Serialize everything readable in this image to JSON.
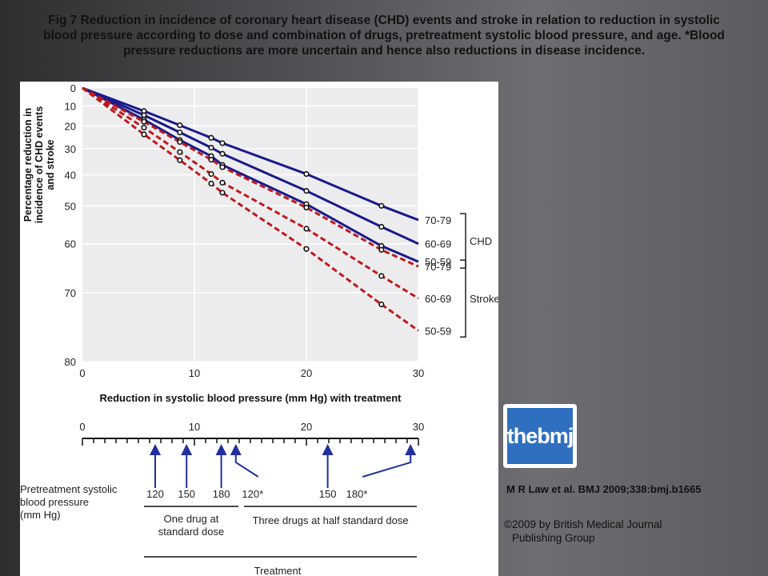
{
  "caption": "Fig 7  Reduction in incidence of coronary heart disease (CHD) events and stroke in relation to reduction in systolic blood pressure according to dose and combination of drugs, pretreatment systolic blood pressure, and age. *Blood pressure reductions are more uncertain and hence also reductions in disease incidence.",
  "chart_data": {
    "type": "line",
    "title": "",
    "xlabel": "Reduction in systolic blood pressure (mm Hg) with treatment",
    "ylabel_lines": [
      "Percentage reduction in",
      "incidence of CHD events",
      "and stroke"
    ],
    "xlim": [
      0,
      30
    ],
    "ylim": [
      0,
      80
    ],
    "y_inverted": true,
    "y_scale": "log(1-p)",
    "x_ticks": [
      0,
      10,
      20,
      30
    ],
    "y_ticks": [
      0,
      10,
      20,
      30,
      40,
      50,
      60,
      70,
      80
    ],
    "grid": true,
    "markers_x": [
      5.5,
      8.7,
      11.5,
      12.5,
      20,
      26.7
    ],
    "series": [
      {
        "name": "70-79",
        "group": "CHD",
        "color": "#1a1a8c",
        "dash": false,
        "end_value": 54,
        "values": [
          12.7,
          19.7,
          25.4,
          27.7,
          39.7,
          50.0
        ]
      },
      {
        "name": "60-69",
        "group": "CHD",
        "color": "#1a1a8c",
        "dash": false,
        "end_value": 60,
        "values": [
          14.8,
          23.0,
          29.6,
          32.1,
          45.4,
          55.8
        ]
      },
      {
        "name": "50-59",
        "group": "CHD",
        "color": "#1a1a8c",
        "dash": false,
        "end_value": 64,
        "values": [
          17.0,
          26.4,
          33.0,
          36.4,
          49.5,
          60.5
        ]
      },
      {
        "name": "70-79",
        "group": "Stroke",
        "color": "#c0191c",
        "dash": true,
        "end_value": 65,
        "values": [
          18.0,
          27.2,
          34.4,
          37.2,
          50.5,
          61.4
        ]
      },
      {
        "name": "60-69",
        "group": "Stroke",
        "color": "#c0191c",
        "dash": true,
        "end_value": 71,
        "values": [
          20.8,
          31.4,
          39.7,
          42.7,
          56.3,
          66.9
        ]
      },
      {
        "name": "50-59",
        "group": "Stroke",
        "color": "#c0191c",
        "dash": true,
        "end_value": 76,
        "values": [
          23.9,
          34.6,
          43.0,
          46.0,
          61.2,
          72.0
        ]
      }
    ],
    "groups": [
      "CHD",
      "Stroke"
    ]
  },
  "treatment": {
    "axis_ticks": [
      0,
      10,
      20,
      30
    ],
    "axis_label_values": [
      0,
      10,
      20,
      30
    ],
    "row_label_lines": [
      "Pretreatment systolic",
      "blood pressure",
      "(mm Hg)"
    ],
    "one_drug": {
      "label_lines": [
        "One drug at",
        "standard dose"
      ],
      "bp": [
        {
          "label": "120",
          "x": 6.5
        },
        {
          "label": "150",
          "x": 9.3
        },
        {
          "label": "180",
          "x": 12.4
        }
      ]
    },
    "three_drugs": {
      "label": "Three drugs at half standard dose",
      "bp": [
        {
          "label": "120*",
          "x": 13.2
        },
        {
          "label": "150",
          "x": 21.9
        },
        {
          "label": "180*",
          "x": 29.3
        }
      ]
    },
    "footer_label": "Treatment"
  },
  "logo": {
    "text": "thebmj"
  },
  "citation": "M R Law et al. BMJ 2009;338:bmj.b1665",
  "copyright_lines": [
    "©2009 by British Medical Journal",
    "Publishing Group"
  ],
  "colors": {
    "chd": "#1a1a8c",
    "stroke": "#c0191c",
    "plot_bg": "#ececee",
    "treat_arrow": "#1f2f9e"
  }
}
